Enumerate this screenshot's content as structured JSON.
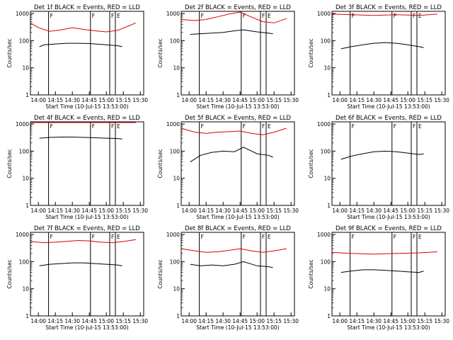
{
  "figure": {
    "xlabel": "Start Time (10-Jul-15 13:53:00)",
    "ylabel": "Counts/sec",
    "x_ticks": [
      "14:00",
      "14:15",
      "14:30",
      "14:45",
      "15:00",
      "15:15",
      "15:30"
    ],
    "y_ticks": [
      "1",
      "10",
      "100",
      "1000"
    ],
    "colors": {
      "events": "#000000",
      "lld": "#dd0000",
      "frame": "#000000"
    },
    "attenuator_markers": [
      {
        "label": "F",
        "time": "14:09"
      },
      {
        "label": "F",
        "time": "14:46"
      },
      {
        "label": "F",
        "time": "15:03"
      },
      {
        "label": "E",
        "time": "15:08"
      }
    ]
  },
  "chart_data": [
    {
      "type": "line",
      "title": "Det 1f BLACK = Events, RED = LLD",
      "yscale": "log",
      "ylim": [
        1,
        1200
      ],
      "xlim": [
        "13:53",
        "15:33"
      ],
      "series": [
        {
          "name": "Events",
          "x": [
            "14:01",
            "14:05",
            "14:15",
            "14:25",
            "14:35",
            "14:45",
            "15:00",
            "15:10",
            "15:14"
          ],
          "values": [
            60,
            70,
            75,
            80,
            80,
            78,
            70,
            65,
            60
          ]
        },
        {
          "name": "LLD",
          "x": [
            "13:53",
            "14:00",
            "14:10",
            "14:20",
            "14:30",
            "14:40",
            "14:50",
            "15:00",
            "15:10",
            "15:20",
            "15:26"
          ],
          "values": [
            450,
            300,
            220,
            250,
            300,
            260,
            230,
            210,
            240,
            350,
            450
          ]
        }
      ]
    },
    {
      "type": "line",
      "title": "Det 2f BLACK = Events, RED = LLD",
      "yscale": "log",
      "ylim": [
        1,
        1200
      ],
      "xlim": [
        "13:53",
        "15:33"
      ],
      "series": [
        {
          "name": "Events",
          "x": [
            "14:01",
            "14:10",
            "14:20",
            "14:30",
            "14:40",
            "14:48",
            "15:00",
            "15:10",
            "15:14"
          ],
          "values": [
            170,
            180,
            190,
            200,
            230,
            250,
            210,
            190,
            180
          ]
        },
        {
          "name": "LLD",
          "x": [
            "13:53",
            "14:05",
            "14:15",
            "14:25",
            "14:35",
            "14:45",
            "14:53",
            "15:05",
            "15:15",
            "15:26"
          ],
          "values": [
            600,
            550,
            600,
            750,
            950,
            1200,
            800,
            500,
            450,
            650
          ]
        }
      ]
    },
    {
      "type": "line",
      "title": "Det 3f BLACK = Events, RED = LLD",
      "yscale": "log",
      "ylim": [
        1,
        1200
      ],
      "xlim": [
        "13:53",
        "15:33"
      ],
      "series": [
        {
          "name": "Events",
          "x": [
            "14:01",
            "14:10",
            "14:20",
            "14:30",
            "14:40",
            "14:50",
            "15:00",
            "15:10",
            "15:14"
          ],
          "values": [
            50,
            60,
            70,
            80,
            85,
            80,
            70,
            60,
            55
          ]
        },
        {
          "name": "LLD",
          "x": [
            "13:53",
            "14:10",
            "14:30",
            "14:50",
            "15:10",
            "15:26"
          ],
          "values": [
            950,
            900,
            850,
            900,
            850,
            950
          ]
        }
      ]
    },
    {
      "type": "line",
      "title": "Det 4f BLACK = Events, RED = LLD",
      "yscale": "log",
      "ylim": [
        1,
        1200
      ],
      "xlim": [
        "13:53",
        "15:33"
      ],
      "series": [
        {
          "name": "Events",
          "x": [
            "14:01",
            "14:10",
            "14:20",
            "14:30",
            "14:40",
            "14:50",
            "15:00",
            "15:10",
            "15:14"
          ],
          "values": [
            300,
            320,
            330,
            330,
            320,
            310,
            300,
            290,
            280
          ]
        },
        {
          "name": "LLD",
          "x": [
            "13:53",
            "14:10",
            "14:30",
            "14:50",
            "15:10",
            "15:26"
          ],
          "values": [
            1600,
            1550,
            1500,
            1550,
            1600,
            1700
          ]
        }
      ]
    },
    {
      "type": "line",
      "title": "Det 5f BLACK = Events, RED = LLD",
      "yscale": "log",
      "ylim": [
        1,
        1200
      ],
      "xlim": [
        "13:53",
        "15:33"
      ],
      "series": [
        {
          "name": "Events",
          "x": [
            "14:01",
            "14:10",
            "14:20",
            "14:30",
            "14:40",
            "14:48",
            "15:00",
            "15:10",
            "15:14"
          ],
          "values": [
            40,
            70,
            90,
            100,
            95,
            140,
            80,
            70,
            60
          ]
        },
        {
          "name": "LLD",
          "x": [
            "13:53",
            "14:05",
            "14:15",
            "14:25",
            "14:35",
            "14:45",
            "14:55",
            "15:05",
            "15:15",
            "15:26"
          ],
          "values": [
            700,
            500,
            450,
            500,
            520,
            550,
            450,
            400,
            500,
            700
          ]
        }
      ]
    },
    {
      "type": "line",
      "title": "Det 6f BLACK = Events, RED = LLD",
      "yscale": "log",
      "ylim": [
        1,
        1200
      ],
      "xlim": [
        "13:53",
        "15:33"
      ],
      "series": [
        {
          "name": "Events",
          "x": [
            "14:01",
            "14:10",
            "14:20",
            "14:30",
            "14:40",
            "14:50",
            "15:00",
            "15:10",
            "15:14"
          ],
          "values": [
            50,
            65,
            80,
            95,
            100,
            95,
            85,
            75,
            80
          ]
        }
      ]
    },
    {
      "type": "line",
      "title": "Det 7f BLACK = Events, RED = LLD",
      "yscale": "log",
      "ylim": [
        1,
        1200
      ],
      "xlim": [
        "13:53",
        "15:33"
      ],
      "series": [
        {
          "name": "Events",
          "x": [
            "14:01",
            "14:10",
            "14:20",
            "14:30",
            "14:40",
            "14:50",
            "15:00",
            "15:10",
            "15:14"
          ],
          "values": [
            70,
            80,
            85,
            90,
            90,
            85,
            80,
            75,
            70
          ]
        },
        {
          "name": "LLD",
          "x": [
            "13:53",
            "14:05",
            "14:15",
            "14:25",
            "14:35",
            "14:45",
            "14:55",
            "15:05",
            "15:15",
            "15:26"
          ],
          "values": [
            550,
            500,
            520,
            560,
            600,
            580,
            520,
            500,
            550,
            650
          ]
        }
      ]
    },
    {
      "type": "line",
      "title": "Det 8f BLACK = Events, RED = LLD",
      "yscale": "log",
      "ylim": [
        1,
        1200
      ],
      "xlim": [
        "13:53",
        "15:33"
      ],
      "series": [
        {
          "name": "Events",
          "x": [
            "14:01",
            "14:10",
            "14:20",
            "14:30",
            "14:40",
            "14:48",
            "15:00",
            "15:10",
            "15:14"
          ],
          "values": [
            80,
            70,
            75,
            70,
            80,
            100,
            70,
            65,
            60
          ]
        },
        {
          "name": "LLD",
          "x": [
            "13:53",
            "14:05",
            "14:15",
            "14:25",
            "14:35",
            "14:45",
            "14:55",
            "15:05",
            "15:15",
            "15:26"
          ],
          "values": [
            300,
            250,
            220,
            230,
            260,
            300,
            250,
            220,
            250,
            300
          ]
        }
      ]
    },
    {
      "type": "line",
      "title": "Det 9f BLACK = Events, RED = LLD",
      "yscale": "log",
      "ylim": [
        1,
        1200
      ],
      "xlim": [
        "13:53",
        "15:33"
      ],
      "series": [
        {
          "name": "Events",
          "x": [
            "14:01",
            "14:10",
            "14:20",
            "14:30",
            "14:40",
            "14:50",
            "15:00",
            "15:10",
            "15:14"
          ],
          "values": [
            40,
            45,
            50,
            50,
            48,
            45,
            42,
            40,
            45
          ]
        },
        {
          "name": "LLD",
          "x": [
            "13:53",
            "14:10",
            "14:30",
            "14:50",
            "15:10",
            "15:26"
          ],
          "values": [
            220,
            200,
            190,
            200,
            210,
            230
          ]
        }
      ]
    }
  ]
}
